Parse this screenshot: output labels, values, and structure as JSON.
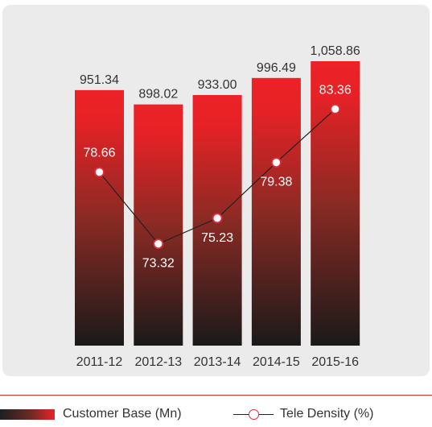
{
  "chart_data": {
    "type": "bar",
    "categories": [
      "2011-12",
      "2012-13",
      "2013-14",
      "2014-15",
      "2015-16"
    ],
    "series": [
      {
        "name": "Customer Base (Mn)",
        "type": "bar",
        "values": [
          951.34,
          898.02,
          933.0,
          996.49,
          1058.86
        ],
        "labels": [
          "951.34",
          "898.02",
          "933.00",
          "996.49",
          "1,058.86"
        ]
      },
      {
        "name": "Tele Density (%)",
        "type": "line",
        "values": [
          78.66,
          73.32,
          75.23,
          79.38,
          83.36
        ],
        "labels": [
          "78.66",
          "73.32",
          "75.23",
          "79.38",
          "83.36"
        ]
      }
    ],
    "bar_ylim": [
      0,
      1100
    ],
    "line_ylim": [
      64,
      88
    ],
    "grid": false,
    "legend_position": "bottom",
    "colors": {
      "bar_top": "#ec2227",
      "bar_bottom": "#1a1a1a",
      "line": "#222222",
      "marker_edge": "#d9303a",
      "marker_fill": "#ffffff",
      "panel_bg": "#ebebeb",
      "divider": "#d9303a"
    }
  },
  "legend": {
    "bar_label": "Customer Base (Mn)",
    "line_label": "Tele Density (%)"
  }
}
